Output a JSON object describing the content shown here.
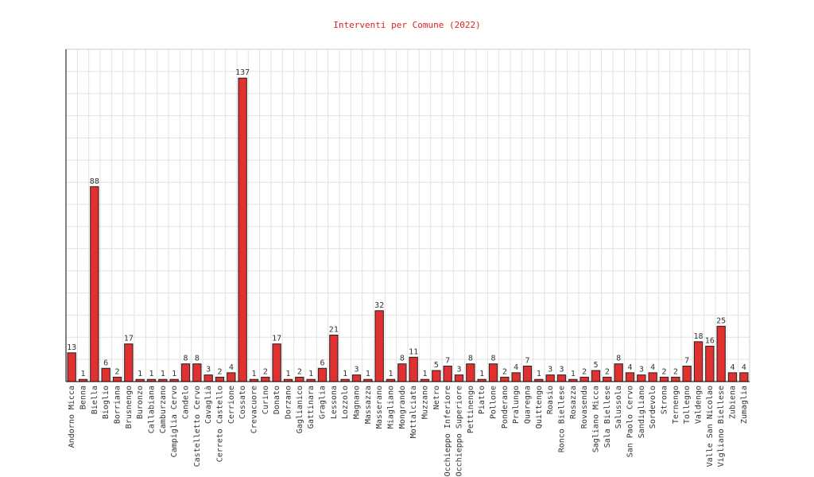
{
  "chart_data": {
    "type": "bar",
    "title": "Interventi per Comune (2022)",
    "xlabel": "",
    "ylabel": "",
    "ylim": [
      0,
      150
    ],
    "grid": true,
    "bar_color": "#e03030",
    "bar_border": "#222222",
    "categories": [
      "Andorno Micca",
      "Benna",
      "Biella",
      "Bioglio",
      "Borriana",
      "Brusnengo",
      "Buronzo",
      "Callabiana",
      "Camburzano",
      "Campiglia Cervo",
      "Candelo",
      "Castelletto Cervo",
      "Cavagli&agrave;",
      "Cerreto Castello",
      "Cerrione",
      "Cossato",
      "Crevacuore",
      "Curino",
      "Donato",
      "Dorzano",
      "Gaglianico",
      "Gattinara",
      "Graglia",
      "Lessona",
      "Lozzolo",
      "Magnano",
      "Massazza",
      "Masserano",
      "Miagliano",
      "Mongrando",
      "Mottalciata",
      "Muzzano",
      "Netro",
      "Occhieppo Inferiore",
      "Occhieppo Superiore",
      "Pettinengo",
      "Piatto",
      "Pollone",
      "Ponderano",
      "Pralungo",
      "Quaregna",
      "Quittengo",
      "Roasio",
      "Ronco Biellese",
      "Rosazza",
      "Rovasenda",
      "Sagliano Micca",
      "Sala Biellese",
      "Salussola",
      "San Paolo Cervo",
      "Sandigliano",
      "Sordevolo",
      "Strona",
      "Ternengo",
      "Tollegno",
      "Valdengo",
      "Valle San Nicolao",
      "Vigliano Biellese",
      "Zubiena",
      "Zumaglia"
    ],
    "values": [
      13,
      1,
      88,
      6,
      2,
      17,
      1,
      1,
      1,
      1,
      8,
      8,
      3,
      2,
      4,
      137,
      1,
      2,
      17,
      1,
      2,
      1,
      6,
      21,
      1,
      3,
      1,
      32,
      1,
      8,
      11,
      1,
      5,
      7,
      3,
      8,
      1,
      8,
      2,
      4,
      7,
      1,
      3,
      3,
      1,
      2,
      5,
      2,
      8,
      4,
      3,
      4,
      2,
      2,
      7,
      18,
      16,
      25,
      4,
      4
    ]
  }
}
